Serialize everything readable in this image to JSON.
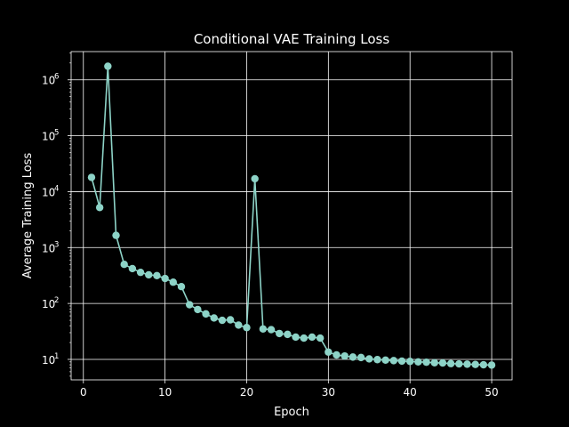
{
  "chart_data": {
    "type": "line",
    "title": "Conditional VAE Training Loss",
    "xlabel": "Epoch",
    "ylabel": "Average Training Loss",
    "xlim": [
      -1.5,
      52.5
    ],
    "ylim": [
      4.3,
      3200000
    ],
    "yscale": "log",
    "grid": true,
    "line_color": "#8dd3c7",
    "x_ticks": [
      0,
      10,
      20,
      30,
      40,
      50
    ],
    "y_ticks": [
      {
        "base": "10",
        "exp": "1",
        "value": 10
      },
      {
        "base": "10",
        "exp": "2",
        "value": 100
      },
      {
        "base": "10",
        "exp": "3",
        "value": 1000
      },
      {
        "base": "10",
        "exp": "4",
        "value": 10000
      },
      {
        "base": "10",
        "exp": "5",
        "value": 100000
      },
      {
        "base": "10",
        "exp": "6",
        "value": 1000000
      }
    ],
    "series": [
      {
        "x": [
          1,
          2,
          3,
          4,
          5,
          6,
          7,
          8,
          9,
          10,
          11,
          12,
          13,
          14,
          15,
          16,
          17,
          18,
          19,
          20,
          21,
          22,
          23,
          24,
          25,
          26,
          27,
          28,
          29,
          30,
          31,
          32,
          33,
          34,
          35,
          36,
          37,
          38,
          39,
          40,
          41,
          42,
          43,
          44,
          45,
          46,
          47,
          48,
          49,
          50
        ],
        "y": [
          18000,
          5200,
          1750000,
          1650,
          500,
          420,
          360,
          325,
          315,
          280,
          240,
          200,
          95,
          78,
          65,
          55,
          50,
          51,
          41,
          37,
          17000,
          35,
          34,
          29,
          28,
          25,
          24,
          25,
          24,
          13.5,
          12,
          11.5,
          11,
          10.8,
          10.2,
          9.9,
          9.7,
          9.5,
          9.3,
          9.2,
          9.0,
          8.9,
          8.7,
          8.6,
          8.4,
          8.3,
          8.2,
          8.1,
          8.0,
          7.9
        ]
      }
    ]
  }
}
